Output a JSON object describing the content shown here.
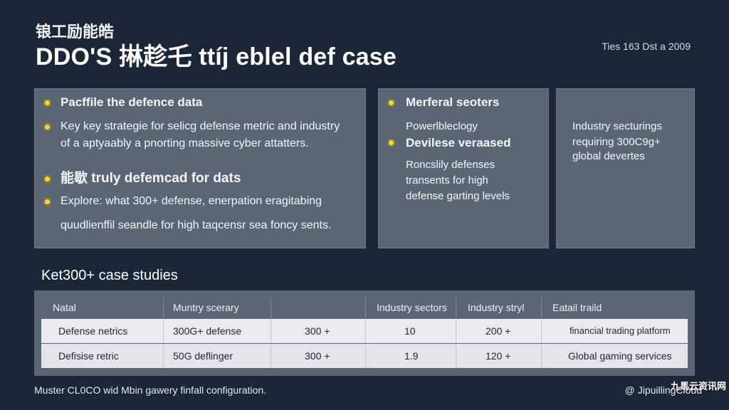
{
  "header": {
    "kicker": "锒工励能皓",
    "title": "DDO'S 㨆趁乇 ttíj eblel def case",
    "date": "Ties 163 Dst a 2009"
  },
  "panel1": {
    "line1": "Pacffile the defence data",
    "line2": "Key key strategie for selicg defense metric and industry",
    "line3": "of a aptyaably a pnorting massive cyber attatters.",
    "line4": "能歇 truly defemcad for dats",
    "line5": "Explore: what 300+ defense, enerpation eragitabing",
    "line6": "quudlienffil seandle for high taqcensr sea foncy sents."
  },
  "panel2": {
    "line1": "Merferal seoters",
    "line2": "Powerlbleclogy",
    "line3": "Devilese veraased",
    "line4": "Roncslily defenses",
    "line5": "transents for high",
    "line6": "defense garting levels"
  },
  "panel3": {
    "line1": "Industry secturings",
    "line2": "requiring 300C9g+",
    "line3": "global devertes"
  },
  "section": {
    "title": "Ket300+ case studies"
  },
  "table": {
    "headers": [
      "Natal",
      "Muntry scerary",
      "",
      "Industry sectors",
      "Industry stryl",
      "Eatail traild"
    ],
    "rows": [
      [
        "Defense netrics",
        "300G+ defense",
        "300 +",
        "10",
        "200 +",
        "financial trading platform"
      ],
      [
        "Defisise retric",
        "50G deflinger",
        "300 +",
        "1.9",
        "120 +",
        "Global gaming services"
      ]
    ]
  },
  "footer": {
    "text": "Muster CL0CO wid Mbin gawery finfall configuration.",
    "brand": "@ JipuillingCloud",
    "corner": "九馬云资讯网"
  },
  "colors": {
    "bullet": "#f1d84a",
    "panel": "#5b6675",
    "background": "#1b2637"
  },
  "icons": {
    "bullet": "yellow-circle-bullet"
  }
}
